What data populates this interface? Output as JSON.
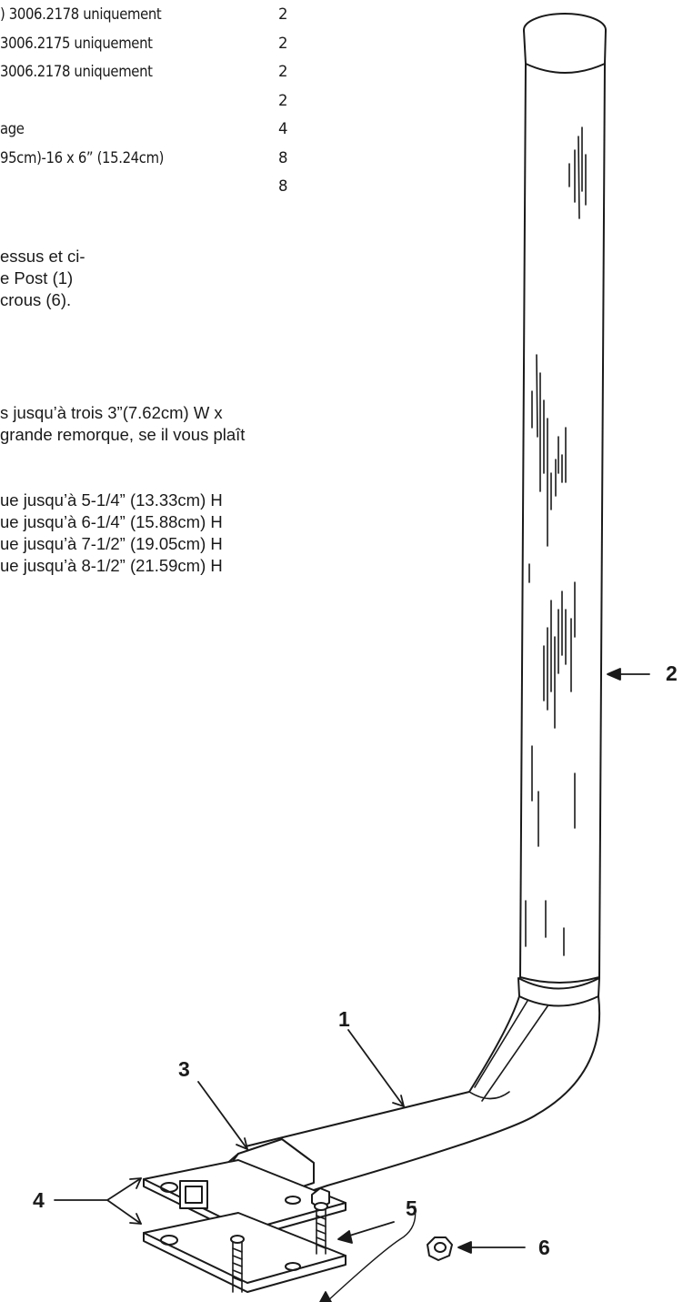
{
  "parts": [
    {
      "desc": ") 3006.2178 uniquement",
      "qty": "2"
    },
    {
      "desc": "3006.2175 uniquement",
      "qty": "2"
    },
    {
      "desc": "3006.2178 uniquement",
      "qty": "2"
    },
    {
      "desc": "",
      "qty": "2"
    },
    {
      "desc": "age",
      "qty": "4"
    },
    {
      "desc": "95cm)-16 x 6” (15.24cm)",
      "qty": "8"
    },
    {
      "desc": "",
      "qty": "8"
    }
  ],
  "instructions": [
    "essus et ci-",
    "e Post (1)",
    "crous (6)."
  ],
  "notes": [
    "s jusqu’à trois 3”(7.62cm) W x",
    "grande remorque, se il vous plaît"
  ],
  "sizes": [
    "ue jusqu’à 5-1/4” (13.33cm) H",
    "ue jusqu’à 6-1/4” (15.88cm) H",
    "ue jusqu’à 7-1/2” (19.05cm) H",
    "ue jusqu’à 8-1/2” (21.59cm) H"
  ],
  "callouts": {
    "c1": "1",
    "c2": "2",
    "c3": "3",
    "c4": "4",
    "c5": "5",
    "c6": "6"
  }
}
